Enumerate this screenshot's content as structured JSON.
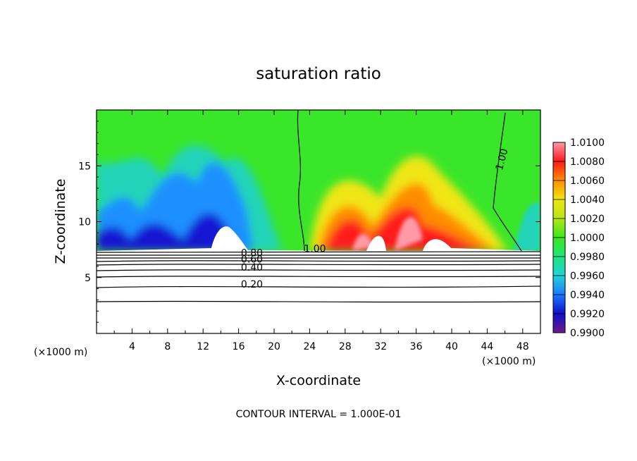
{
  "chart_data": {
    "type": "heatmap",
    "title": "saturation ratio",
    "xlabel": "X-coordinate",
    "ylabel": "Z-coordinate",
    "x_unit": "(×1000 m)",
    "xlim": [
      0,
      50
    ],
    "ylim": [
      0,
      20
    ],
    "x_ticks": [
      4,
      8,
      12,
      16,
      20,
      24,
      28,
      32,
      36,
      40,
      44,
      48
    ],
    "y_ticks": [
      5,
      10,
      15
    ],
    "footer": "CONTOUR INTERVAL = 1.000E-01",
    "colorbar": {
      "ticks": [
        "1.0100",
        "1.0080",
        "1.0060",
        "1.0040",
        "1.0020",
        "1.0000",
        "0.9980",
        "0.9960",
        "0.9940",
        "0.9920",
        "0.9900"
      ],
      "range": [
        0.99,
        1.01
      ]
    },
    "contour_labels": [
      {
        "text": "1.00",
        "x": 46.0,
        "y": 15.5,
        "rotate": -75
      },
      {
        "text": "1.00",
        "x": 24.6,
        "y": 7.3,
        "rotate": 0
      },
      {
        "text": "0.80",
        "x": 17.5,
        "y": 6.9,
        "rotate": 0
      },
      {
        "text": "0.60",
        "x": 17.5,
        "y": 6.35,
        "rotate": 0
      },
      {
        "text": "0.40",
        "x": 17.5,
        "y": 5.6,
        "rotate": 0
      },
      {
        "text": "0.20",
        "x": 17.5,
        "y": 4.1,
        "rotate": 0
      }
    ]
  }
}
